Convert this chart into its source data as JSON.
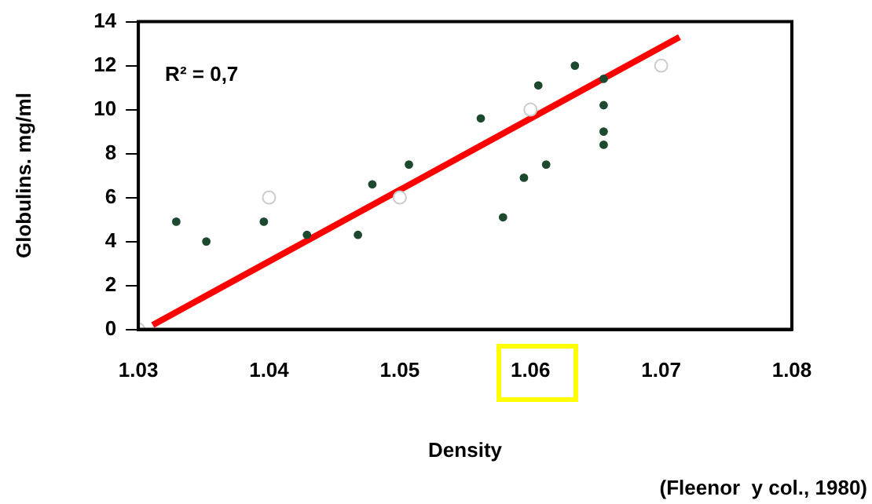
{
  "chart_data": {
    "type": "scatter",
    "xlabel": "Density",
    "ylabel": "Globulins. mg/ml",
    "annotations": [
      "R² = 0,7",
      "(Fleenor  y col., 1980)"
    ],
    "xlim": [
      1.03,
      1.08
    ],
    "xticks": [
      {
        "value": 1.03,
        "label": "1.03"
      },
      {
        "value": 1.04,
        "label": "1.04"
      },
      {
        "value": 1.05,
        "label": "1.05"
      },
      {
        "value": 1.06,
        "label": "1.06"
      },
      {
        "value": 1.07,
        "label": "1.07"
      },
      {
        "value": 1.08,
        "label": "1.08"
      }
    ],
    "ylim": [
      0,
      14
    ],
    "yticks": [
      0,
      2,
      4,
      6,
      8,
      10,
      12,
      14
    ],
    "grid": false,
    "legend": false,
    "marker": "circle",
    "series": [
      {
        "color": "#1d4a2f",
        "x": [
          1.0329,
          1.0352,
          1.0396,
          1.0429,
          1.0468,
          1.0479,
          1.0507,
          1.0562,
          1.0606,
          1.0634,
          1.0656,
          1.0656,
          1.0656,
          1.0656,
          1.0612,
          1.0595,
          1.0579
        ],
        "values": [
          4.9,
          4.0,
          4.9,
          4.3,
          4.3,
          6.6,
          7.5,
          9.6,
          11.1,
          12.0,
          11.4,
          10.2,
          9.0,
          8.4,
          7.5,
          6.9,
          5.1
        ]
      },
      {
        "color": "#cccccc",
        "x": [
          1.03,
          1.04,
          1.05,
          1.06,
          1.07
        ],
        "values": [
          0,
          6.0,
          6.0,
          10.0,
          12.0
        ]
      },
      {
        "type": "line",
        "marker": "none",
        "color": "#ff0000",
        "x": [
          1.0311,
          1.0714
        ],
        "values": [
          0.2,
          13.3
        ]
      }
    ]
  }
}
